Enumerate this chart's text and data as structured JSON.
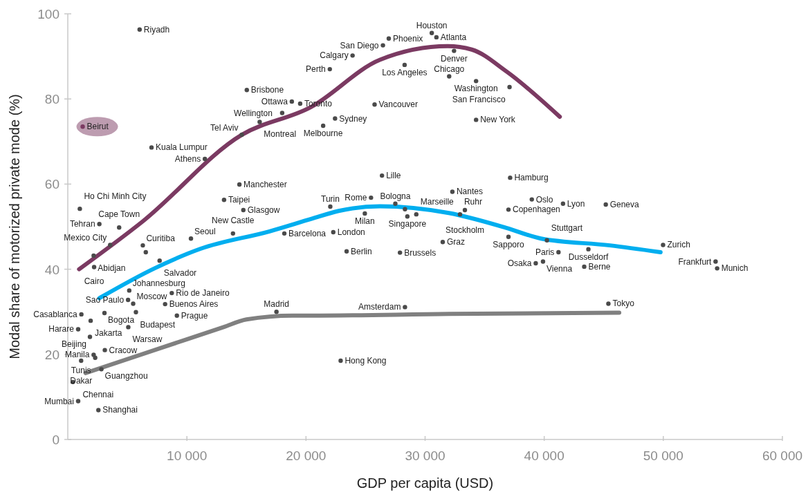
{
  "chart_data": {
    "type": "scatter",
    "xlabel": "GDP per capita (USD)",
    "ylabel": "Modal share of motorized private mode (%)",
    "xlim": [
      0,
      60000
    ],
    "xticks": [
      {
        "value": 10000,
        "label": "10 000"
      },
      {
        "value": 20000,
        "label": "20 000"
      },
      {
        "value": 30000,
        "label": "30 000"
      },
      {
        "value": 40000,
        "label": "40 000"
      },
      {
        "value": 50000,
        "label": "50 000"
      },
      {
        "value": 60000,
        "label": "60 000"
      }
    ],
    "ylim": [
      0,
      100
    ],
    "yticks": [
      0,
      20,
      40,
      60,
      80,
      100
    ],
    "series": [
      {
        "color": "#4a4a4a",
        "marker": "circle",
        "x": [
          6030,
          15030,
          18810,
          19510,
          18000,
          16110,
          14610,
          7030,
          11510,
          14410,
          13120,
          14740,
          1010,
          26950,
          26460,
          30560,
          30950,
          32430,
          23910,
          22000,
          28280,
          32020,
          34280,
          37090,
          25760,
          22440,
          21440,
          34280,
          26380,
          32290,
          37140,
          25460,
          22040,
          27500,
          28310,
          28510,
          29260,
          24940,
          33340,
          32930,
          37000,
          38960,
          41580,
          45170,
          22290,
          23410,
          27890,
          31480,
          37000,
          40230,
          41200,
          39900,
          39290,
          43710,
          43360,
          45390,
          28310,
          49980,
          54390,
          54520,
          2650,
          4310,
          3560,
          6300,
          6550,
          10340,
          13870,
          18180,
          2170,
          2210,
          7710,
          5160,
          5060,
          5490,
          1140,
          3080,
          5720,
          8170,
          8730,
          9160,
          17520,
          1920,
          870,
          5080,
          1860,
          3110,
          2170,
          2300,
          1120,
          2820,
          430,
          870,
          2570,
          22910
        ],
        "values": [
          96.3,
          82.1,
          79.4,
          78.9,
          76.7,
          74.6,
          71.6,
          68.6,
          65.9,
          59.9,
          56.3,
          53.9,
          54.2,
          94.2,
          92.6,
          95.5,
          94.5,
          91.3,
          90.2,
          87.0,
          88.0,
          85.3,
          84.2,
          82.8,
          78.7,
          75.4,
          73.7,
          75.1,
          62.0,
          58.2,
          61.5,
          56.8,
          54.7,
          55.4,
          54.1,
          52.4,
          52.9,
          53.1,
          53.9,
          52.9,
          54.0,
          56.4,
          55.4,
          55.2,
          48.7,
          44.2,
          43.9,
          46.4,
          47.6,
          46.8,
          44.0,
          41.8,
          41.4,
          44.7,
          40.6,
          31.9,
          31.1,
          45.7,
          41.8,
          40.2,
          50.6,
          49.8,
          45.7,
          45.6,
          44.0,
          47.2,
          48.4,
          48.4,
          43.2,
          40.5,
          42.0,
          35.0,
          32.8,
          31.9,
          29.4,
          29.7,
          29.9,
          31.8,
          34.4,
          29.1,
          30.0,
          27.9,
          25.9,
          26.4,
          24.1,
          21.0,
          19.9,
          19.2,
          18.5,
          16.5,
          13.5,
          9.0,
          6.9,
          18.5
        ]
      },
      {
        "color": "#7b3a62",
        "marker": "circle",
        "x": [
          1250
        ],
        "values": [
          73.5
        ]
      },
      {
        "type": "line",
        "color": "#7b3a62",
        "x": [
          950,
          6320,
          14630,
          20420,
          26210,
          31900,
          33920,
          36810,
          41310
        ],
        "values": [
          40.0,
          51.3,
          71.6,
          78.1,
          89.2,
          92.4,
          91.6,
          86.5,
          75.8
        ]
      },
      {
        "type": "line",
        "color": "#00aeef",
        "x": [
          2650,
          7280,
          11140,
          16940,
          20420,
          22740,
          26210,
          32000,
          36830,
          39730,
          45520,
          49770
        ],
        "values": [
          33.2,
          40.2,
          44.8,
          48.9,
          51.8,
          53.7,
          54.8,
          53.2,
          49.7,
          47.2,
          45.6,
          44.0
        ]
      },
      {
        "type": "line",
        "color": "#808080",
        "x": [
          1490,
          7280,
          13080,
          15010,
          18870,
          20420,
          32000,
          46300
        ],
        "values": [
          15.6,
          21.0,
          26.4,
          28.2,
          29.1,
          29.1,
          29.5,
          29.8
        ]
      }
    ],
    "annotations": [
      {
        "text": "Riyadh",
        "x": 6030,
        "y": 96.3
      },
      {
        "text": "Brisbone",
        "x": 15030,
        "y": 82.1
      },
      {
        "text": "Ottawa",
        "x": 18810,
        "y": 79.4
      },
      {
        "text": "Toronto",
        "x": 19510,
        "y": 78.9
      },
      {
        "text": "Wellington",
        "x": 18000,
        "y": 76.7
      },
      {
        "text": "Montreal",
        "x": 16110,
        "y": 74.6
      },
      {
        "text": "Tel Aviv",
        "x": 14610,
        "y": 71.6
      },
      {
        "text": "Kuala Lumpur",
        "x": 7030,
        "y": 68.6
      },
      {
        "text": "Athens",
        "x": 11510,
        "y": 65.9
      },
      {
        "text": "Manchester",
        "x": 14410,
        "y": 59.9
      },
      {
        "text": "Taipei",
        "x": 13120,
        "y": 56.3
      },
      {
        "text": "Glasgow",
        "x": 14740,
        "y": 53.9
      },
      {
        "text": "Ho Chi Minh City",
        "x": 1010,
        "y": 54.2
      },
      {
        "text": "Beirut",
        "x": 1250,
        "y": 73.5
      },
      {
        "text": "Phoenix",
        "x": 26950,
        "y": 94.2
      },
      {
        "text": "San Diego",
        "x": 26460,
        "y": 92.6
      },
      {
        "text": "Houston",
        "x": 30560,
        "y": 95.5
      },
      {
        "text": "Atlanta",
        "x": 30950,
        "y": 94.5
      },
      {
        "text": "Denver",
        "x": 32430,
        "y": 91.3
      },
      {
        "text": "Calgary",
        "x": 23910,
        "y": 90.2
      },
      {
        "text": "Perth",
        "x": 22000,
        "y": 87.0
      },
      {
        "text": "Los Angeles",
        "x": 28280,
        "y": 88.0
      },
      {
        "text": "Chicago",
        "x": 32020,
        "y": 85.3
      },
      {
        "text": "Washington",
        "x": 34280,
        "y": 84.2
      },
      {
        "text": "San Francisco",
        "x": 37090,
        "y": 82.8
      },
      {
        "text": "Vancouver",
        "x": 25760,
        "y": 78.7
      },
      {
        "text": "Sydney",
        "x": 22440,
        "y": 75.4
      },
      {
        "text": "Melbourne",
        "x": 21440,
        "y": 73.7
      },
      {
        "text": "New York",
        "x": 34280,
        "y": 75.1
      },
      {
        "text": "Lille",
        "x": 26380,
        "y": 62.0
      },
      {
        "text": "Nantes",
        "x": 32290,
        "y": 58.2
      },
      {
        "text": "Hamburg",
        "x": 37140,
        "y": 61.5
      },
      {
        "text": "Rome",
        "x": 25460,
        "y": 56.8
      },
      {
        "text": "Turin",
        "x": 22040,
        "y": 54.7
      },
      {
        "text": "Bologna",
        "x": 27500,
        "y": 55.4
      },
      {
        "text": "Singapore",
        "x": 28510,
        "y": 52.4
      },
      {
        "text": "Marseille",
        "x": 29260,
        "y": 52.9
      },
      {
        "text": "Milan",
        "x": 24940,
        "y": 53.1
      },
      {
        "text": "Stockholm",
        "x": 33340,
        "y": 53.9
      },
      {
        "text": "Ruhr",
        "x": 32930,
        "y": 52.9
      },
      {
        "text": "Copenhagen",
        "x": 37000,
        "y": 54.0
      },
      {
        "text": "Oslo",
        "x": 38960,
        "y": 56.4
      },
      {
        "text": "Lyon",
        "x": 41580,
        "y": 55.4
      },
      {
        "text": "Geneva",
        "x": 45170,
        "y": 55.2
      },
      {
        "text": "London",
        "x": 22290,
        "y": 48.7
      },
      {
        "text": "Berlin",
        "x": 23410,
        "y": 44.2
      },
      {
        "text": "Brussels",
        "x": 27890,
        "y": 43.9
      },
      {
        "text": "Graz",
        "x": 31480,
        "y": 46.4
      },
      {
        "text": "Sapporo",
        "x": 37000,
        "y": 47.6
      },
      {
        "text": "Stuttgart",
        "x": 40230,
        "y": 46.8
      },
      {
        "text": "Paris",
        "x": 41200,
        "y": 44.0
      },
      {
        "text": "Vienna",
        "x": 39900,
        "y": 41.8
      },
      {
        "text": "Osaka",
        "x": 39290,
        "y": 41.4
      },
      {
        "text": "Dusseldorf",
        "x": 43710,
        "y": 44.7
      },
      {
        "text": "Berne",
        "x": 43360,
        "y": 40.6
      },
      {
        "text": "Tokyo",
        "x": 45390,
        "y": 31.9
      },
      {
        "text": "Amsterdam",
        "x": 28310,
        "y": 31.1
      },
      {
        "text": "Zurich",
        "x": 49980,
        "y": 45.7
      },
      {
        "text": "Frankfurt",
        "x": 54390,
        "y": 41.8
      },
      {
        "text": "Munich",
        "x": 54520,
        "y": 40.2
      },
      {
        "text": "Tehran",
        "x": 2650,
        "y": 50.6
      },
      {
        "text": "Cape Town",
        "x": 4310,
        "y": 49.8
      },
      {
        "text": "Mexico City",
        "x": 3560,
        "y": 45.7
      },
      {
        "text": "Curitiba",
        "x": 6300,
        "y": 45.6
      },
      {
        "text": "Seoul",
        "x": 10340,
        "y": 47.2
      },
      {
        "text": "New Castle",
        "x": 13870,
        "y": 48.4
      },
      {
        "text": "Barcelona",
        "x": 18180,
        "y": 48.4
      },
      {
        "text": "Abidjan",
        "x": 2170,
        "y": 43.2
      },
      {
        "text": "Cairo",
        "x": 2210,
        "y": 40.5
      },
      {
        "text": "Salvador",
        "x": 7710,
        "y": 42.0
      },
      {
        "text": "Johannesburg",
        "x": 5160,
        "y": 35.0
      },
      {
        "text": "Sao Paulo",
        "x": 5060,
        "y": 32.8
      },
      {
        "text": "Moscow",
        "x": 5490,
        "y": 31.9
      },
      {
        "text": "Casablanca",
        "x": 1140,
        "y": 29.4
      },
      {
        "text": "Bogota",
        "x": 3080,
        "y": 29.7
      },
      {
        "text": "Budapest",
        "x": 5720,
        "y": 29.9
      },
      {
        "text": "Buenos Aires",
        "x": 8170,
        "y": 31.8
      },
      {
        "text": "Rio de Janeiro",
        "x": 8730,
        "y": 34.4
      },
      {
        "text": "Prague",
        "x": 9160,
        "y": 29.1
      },
      {
        "text": "Madrid",
        "x": 17520,
        "y": 30.0
      },
      {
        "text": "Jakarta",
        "x": 1920,
        "y": 27.9
      },
      {
        "text": "Harare",
        "x": 870,
        "y": 25.9
      },
      {
        "text": "Warsaw",
        "x": 5080,
        "y": 26.4
      },
      {
        "text": "Beijing",
        "x": 1860,
        "y": 24.1
      },
      {
        "text": "Cracow",
        "x": 3110,
        "y": 21.0
      },
      {
        "text": "Manila",
        "x": 2170,
        "y": 19.9
      },
      {
        "text": "Tunis",
        "x": 2300,
        "y": 19.2
      },
      {
        "text": "Dakar",
        "x": 1120,
        "y": 18.5
      },
      {
        "text": "Guangzhou",
        "x": 2820,
        "y": 16.5
      },
      {
        "text": "Chennai",
        "x": 430,
        "y": 13.5
      },
      {
        "text": "Mumbai",
        "x": 870,
        "y": 9.0
      },
      {
        "text": "Shanghai",
        "x": 2570,
        "y": 6.9
      },
      {
        "text": "Hong Kong",
        "x": 22910,
        "y": 18.5
      }
    ]
  }
}
